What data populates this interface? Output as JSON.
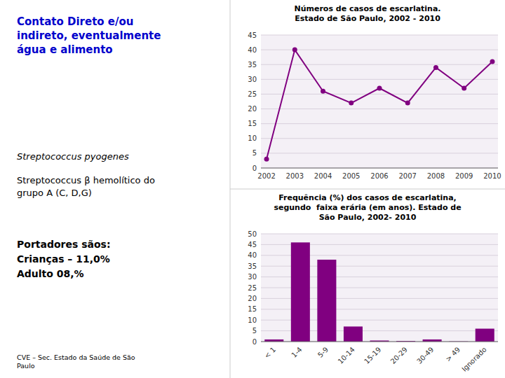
{
  "annotations": [
    {
      "text": "Contato Direto e/ou\nindireto, eventualmente\nágua e alimento",
      "color": "#0000CC"
    },
    {
      "text": "Streptococcus pyogenes"
    },
    {
      "text": "Streptococcus β hemolítico do\ngrupo A (C, D,G)"
    },
    {
      "text": "Portadores sãos:\nCrianças – 11,0%\nAdulto 08,%"
    },
    {
      "text": "CVE – Sec. Estado da Saúde de São\nPaulo"
    }
  ],
  "chart_data": [
    {
      "type": "line",
      "title": "Números de casos de escarlatina.\nEstado de São Paulo, 2002 - 2010",
      "x": [
        2002,
        2003,
        2004,
        2005,
        2006,
        2007,
        2008,
        2009,
        2010
      ],
      "values": [
        3,
        40,
        26,
        22,
        27,
        22,
        34,
        27,
        36
      ],
      "color": "#800080",
      "marker": "circle",
      "xlim": [
        2001.8,
        2010.2
      ],
      "xticks": [
        2002,
        2003,
        2004,
        2005,
        2006,
        2007,
        2008,
        2009,
        2010
      ],
      "ylim": [
        0,
        45
      ],
      "yticks": [
        0,
        5,
        10,
        15,
        20,
        25,
        30,
        35,
        40,
        45
      ],
      "grid": true
    },
    {
      "type": "bar",
      "title": "Frequência (%) dos casos de escarlatina,\nsegundo  faixa erária (em anos). Estado de\nSão Paulo, 2002- 2010",
      "categories": [
        "< 1",
        "1-4",
        "5-9",
        "10-14",
        "15-19",
        "20-29",
        "30-49",
        "> 49",
        "Ignorado"
      ],
      "values": [
        1,
        46,
        38,
        7,
        0.5,
        0.3,
        1,
        0.1,
        6
      ],
      "color": "#800080",
      "ylim": [
        0,
        50
      ],
      "yticks": [
        0,
        5,
        10,
        15,
        20,
        25,
        30,
        35,
        40,
        45,
        50
      ],
      "grid": true
    }
  ]
}
